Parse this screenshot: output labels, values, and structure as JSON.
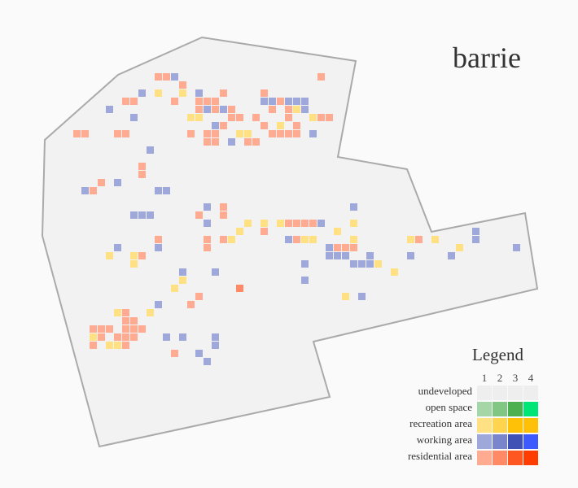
{
  "title": "barrie",
  "legend": {
    "title": "Legend",
    "levels": [
      "1",
      "2",
      "3",
      "4"
    ],
    "rows": [
      {
        "label": "undeveloped",
        "colors": [
          "#eeeeee",
          "#eeeeee",
          "#eeeeee",
          "#eeeeee"
        ]
      },
      {
        "label": "open space",
        "colors": [
          "#a5d6a7",
          "#81c784",
          "#4caf50",
          "#00e676"
        ]
      },
      {
        "label": "recreation area",
        "colors": [
          "#ffe082",
          "#ffd54f",
          "#ffc107",
          "#ffc107"
        ]
      },
      {
        "label": "working area",
        "colors": [
          "#9fa8da",
          "#7986cb",
          "#3f51b5",
          "#3d5afe"
        ]
      },
      {
        "label": "residential area",
        "colors": [
          "#ffab91",
          "#ff8a65",
          "#ff5722",
          "#ff3d00"
        ]
      }
    ]
  },
  "colors": {
    "boundary_fill": "#f2f2f2",
    "boundary_stroke": "#aaaaaa",
    "background": "#fafafa"
  },
  "cells": {
    "residential_1": [
      [
        190,
        90
      ],
      [
        200,
        90
      ],
      [
        220,
        100
      ],
      [
        220,
        110
      ],
      [
        160,
        120
      ],
      [
        150,
        120
      ],
      [
        210,
        120
      ],
      [
        240,
        120
      ],
      [
        250,
        120
      ],
      [
        260,
        120
      ],
      [
        240,
        130
      ],
      [
        260,
        130
      ],
      [
        280,
        130
      ],
      [
        290,
        140
      ],
      [
        310,
        140
      ],
      [
        330,
        130
      ],
      [
        340,
        120
      ],
      [
        350,
        130
      ],
      [
        350,
        140
      ],
      [
        360,
        150
      ],
      [
        340,
        160
      ],
      [
        330,
        160
      ],
      [
        350,
        160
      ],
      [
        360,
        160
      ],
      [
        270,
        150
      ],
      [
        250,
        160
      ],
      [
        260,
        160
      ],
      [
        230,
        160
      ],
      [
        150,
        160
      ],
      [
        140,
        160
      ],
      [
        100,
        160
      ],
      [
        90,
        160
      ],
      [
        250,
        170
      ],
      [
        260,
        170
      ],
      [
        300,
        170
      ],
      [
        310,
        170
      ],
      [
        280,
        140
      ],
      [
        320,
        150
      ],
      [
        390,
        140
      ],
      [
        400,
        140
      ],
      [
        390,
        90
      ],
      [
        320,
        110
      ],
      [
        270,
        110
      ],
      [
        170,
        200
      ],
      [
        170,
        210
      ],
      [
        120,
        220
      ],
      [
        110,
        230
      ],
      [
        270,
        250
      ],
      [
        270,
        260
      ],
      [
        240,
        260
      ],
      [
        250,
        290
      ],
      [
        250,
        300
      ],
      [
        270,
        290
      ],
      [
        190,
        290
      ],
      [
        170,
        310
      ],
      [
        380,
        270
      ],
      [
        360,
        270
      ],
      [
        370,
        270
      ],
      [
        350,
        270
      ],
      [
        360,
        290
      ],
      [
        410,
        300
      ],
      [
        420,
        300
      ],
      [
        430,
        300
      ],
      [
        510,
        290
      ],
      [
        240,
        360
      ],
      [
        230,
        370
      ],
      [
        210,
        430
      ],
      [
        150,
        380
      ],
      [
        150,
        390
      ],
      [
        160,
        390
      ],
      [
        150,
        400
      ],
      [
        160,
        400
      ],
      [
        170,
        400
      ],
      [
        110,
        400
      ],
      [
        120,
        400
      ],
      [
        130,
        400
      ],
      [
        140,
        410
      ],
      [
        150,
        410
      ],
      [
        160,
        410
      ],
      [
        120,
        410
      ],
      [
        110,
        420
      ],
      [
        150,
        420
      ],
      [
        320,
        280
      ]
    ],
    "residential_2": [
      [
        290,
        350
      ]
    ],
    "recreation_1": [
      [
        190,
        110
      ],
      [
        220,
        110
      ],
      [
        240,
        140
      ],
      [
        230,
        140
      ],
      [
        290,
        160
      ],
      [
        300,
        160
      ],
      [
        340,
        150
      ],
      [
        360,
        130
      ],
      [
        380,
        140
      ],
      [
        250,
        270
      ],
      [
        280,
        290
      ],
      [
        290,
        280
      ],
      [
        300,
        270
      ],
      [
        340,
        270
      ],
      [
        320,
        270
      ],
      [
        350,
        290
      ],
      [
        370,
        290
      ],
      [
        380,
        290
      ],
      [
        410,
        280
      ],
      [
        430,
        270
      ],
      [
        430,
        290
      ],
      [
        500,
        290
      ],
      [
        530,
        290
      ],
      [
        560,
        300
      ],
      [
        460,
        320
      ],
      [
        480,
        330
      ],
      [
        420,
        360
      ],
      [
        210,
        350
      ],
      [
        220,
        340
      ],
      [
        160,
        310
      ],
      [
        160,
        320
      ],
      [
        130,
        310
      ],
      [
        140,
        380
      ],
      [
        180,
        380
      ],
      [
        110,
        410
      ],
      [
        130,
        420
      ],
      [
        140,
        420
      ]
    ],
    "working_1": [
      [
        210,
        90
      ],
      [
        170,
        110
      ],
      [
        130,
        130
      ],
      [
        160,
        140
      ],
      [
        240,
        110
      ],
      [
        250,
        130
      ],
      [
        270,
        130
      ],
      [
        260,
        150
      ],
      [
        320,
        120
      ],
      [
        330,
        120
      ],
      [
        350,
        120
      ],
      [
        360,
        120
      ],
      [
        370,
        120
      ],
      [
        370,
        130
      ],
      [
        380,
        160
      ],
      [
        280,
        170
      ],
      [
        180,
        180
      ],
      [
        140,
        220
      ],
      [
        100,
        230
      ],
      [
        190,
        230
      ],
      [
        200,
        230
      ],
      [
        160,
        260
      ],
      [
        170,
        260
      ],
      [
        180,
        260
      ],
      [
        250,
        250
      ],
      [
        250,
        270
      ],
      [
        390,
        270
      ],
      [
        430,
        250
      ],
      [
        350,
        290
      ],
      [
        400,
        300
      ],
      [
        410,
        310
      ],
      [
        400,
        310
      ],
      [
        420,
        310
      ],
      [
        430,
        320
      ],
      [
        440,
        320
      ],
      [
        450,
        320
      ],
      [
        450,
        310
      ],
      [
        370,
        320
      ],
      [
        140,
        300
      ],
      [
        190,
        300
      ],
      [
        260,
        330
      ],
      [
        220,
        330
      ],
      [
        190,
        370
      ],
      [
        200,
        410
      ],
      [
        220,
        410
      ],
      [
        260,
        410
      ],
      [
        260,
        420
      ],
      [
        240,
        430
      ],
      [
        250,
        440
      ],
      [
        440,
        360
      ],
      [
        500,
        310
      ],
      [
        550,
        310
      ],
      [
        580,
        290
      ],
      [
        580,
        280
      ],
      [
        630,
        300
      ],
      [
        370,
        340
      ]
    ]
  }
}
